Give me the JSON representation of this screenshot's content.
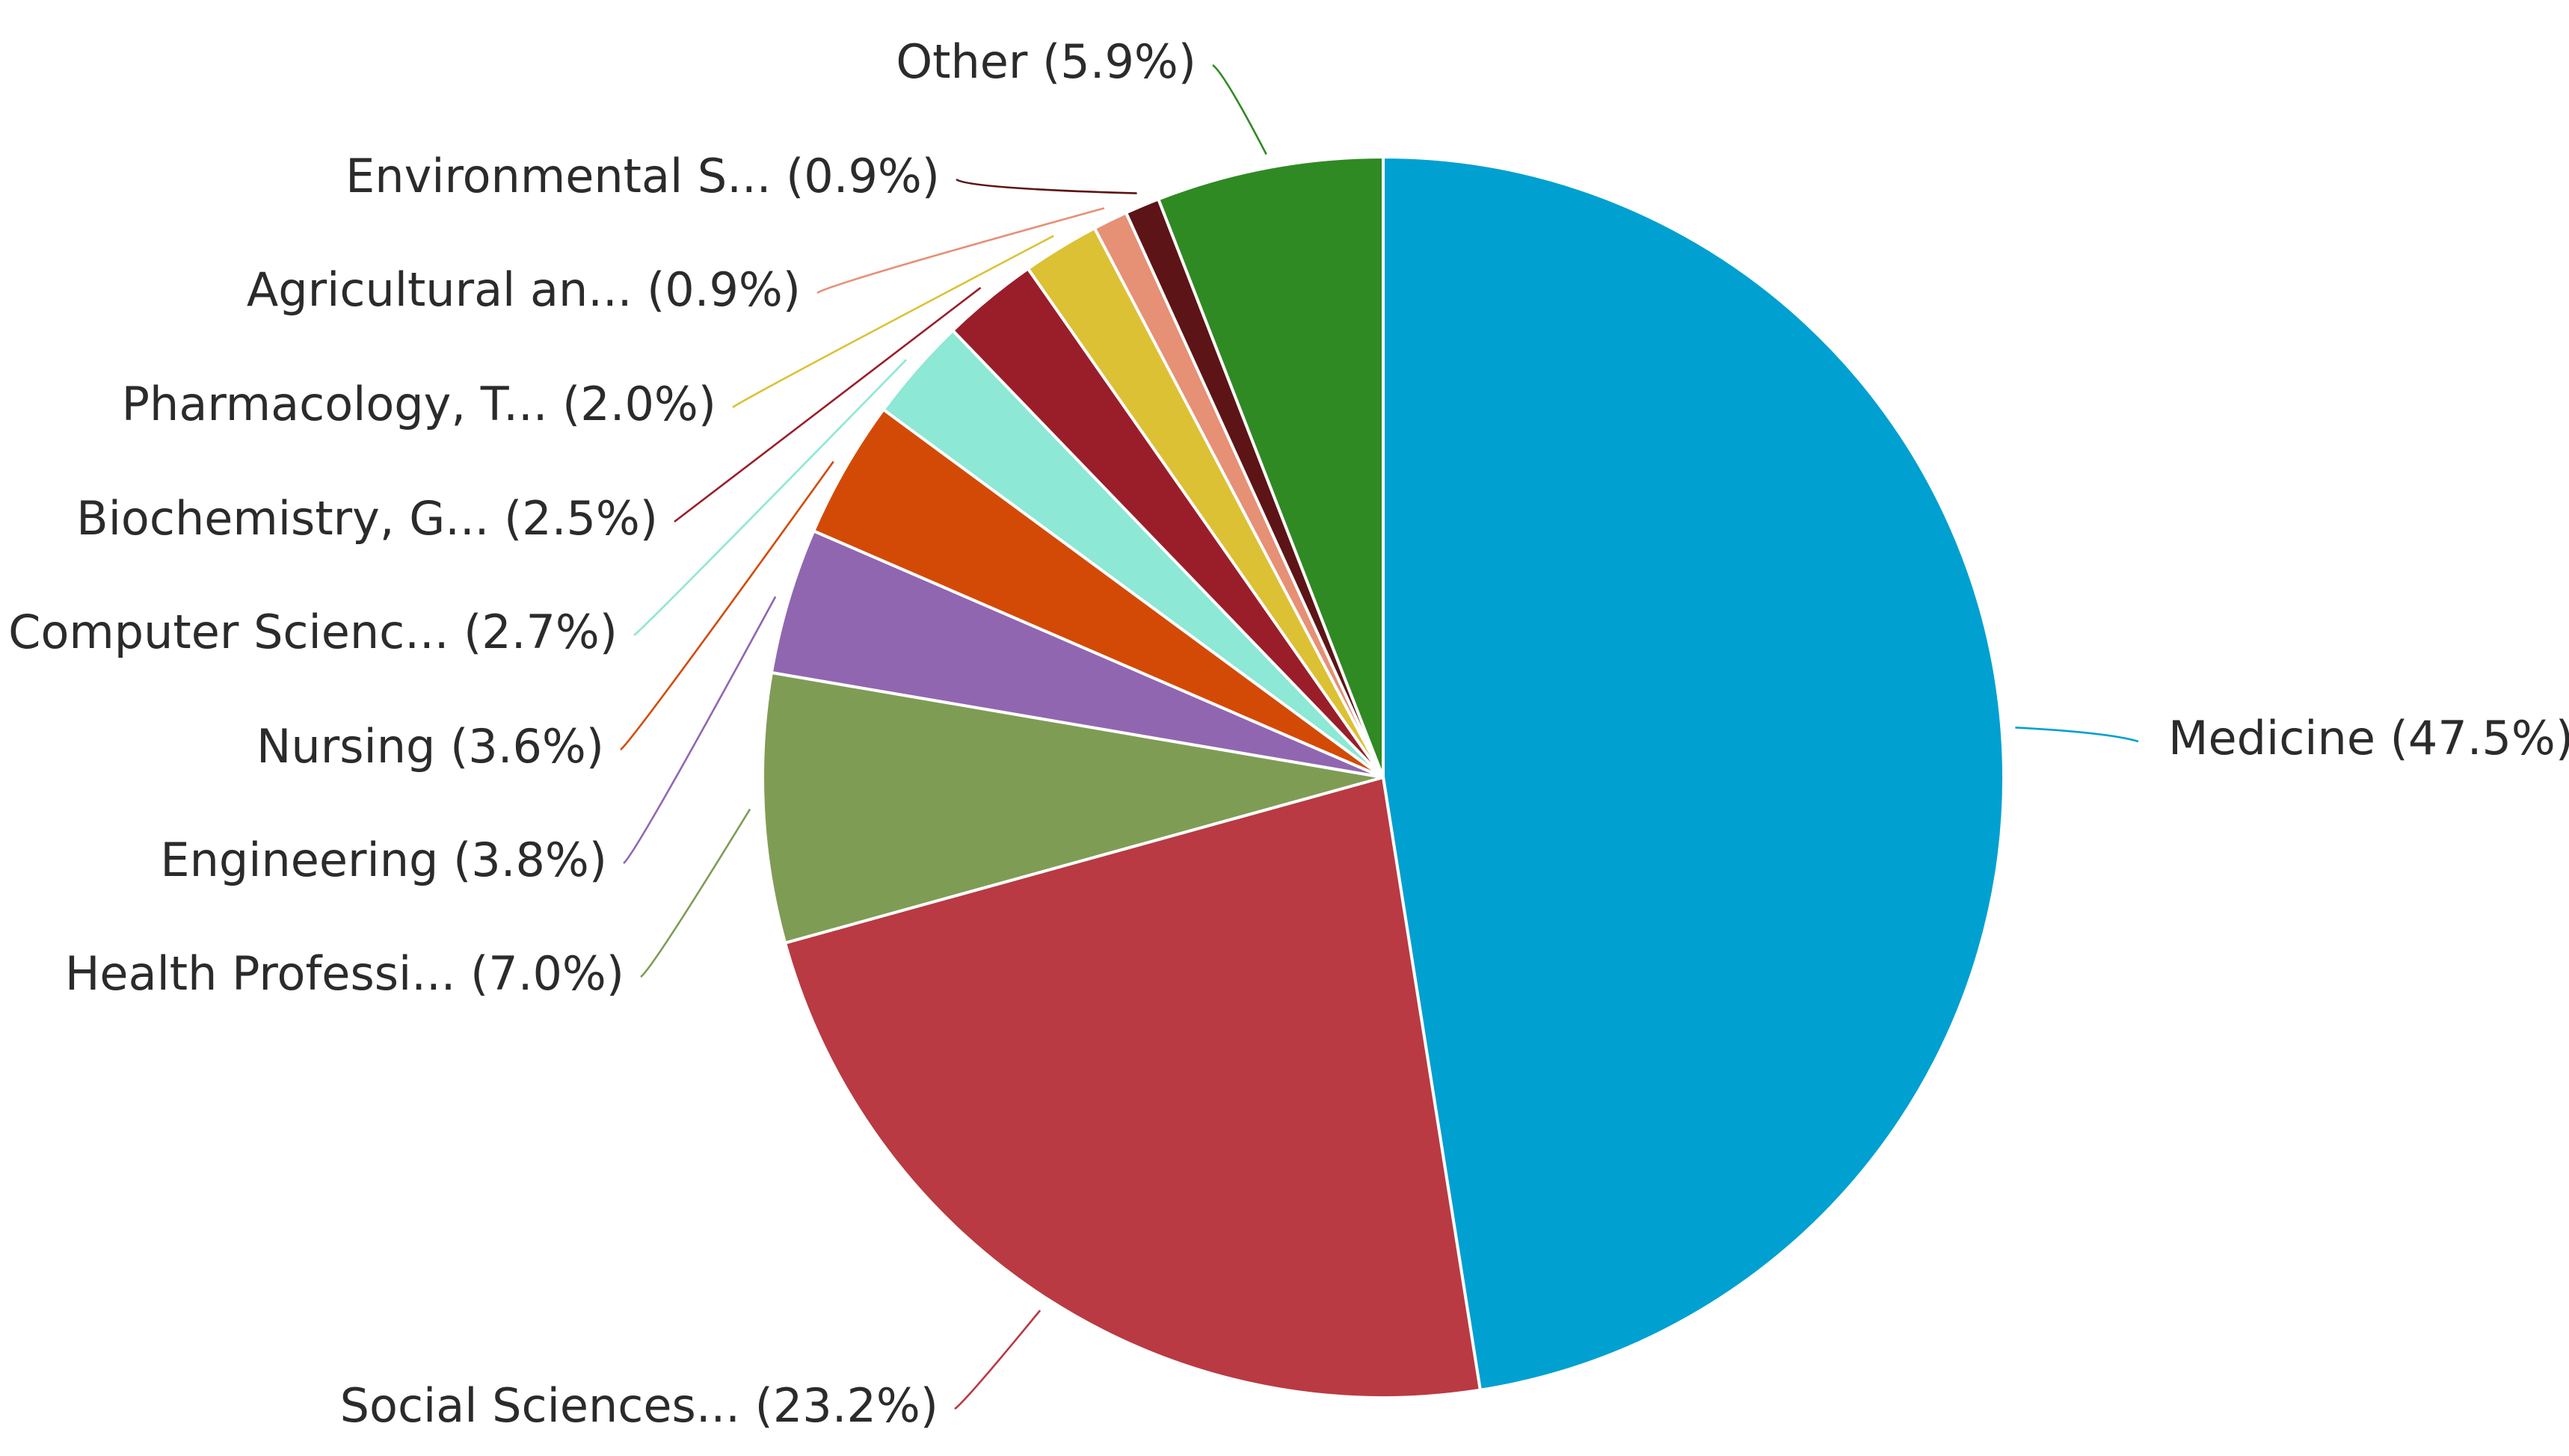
{
  "chart_data": {
    "type": "pie",
    "title": "",
    "start_angle_deg": 0,
    "direction": "clockwise",
    "slices": [
      {
        "label": "Medicine (47.5%)",
        "value": 47.5,
        "color": "#00a0d1"
      },
      {
        "label": "Social Sciences... (23.2%)",
        "value": 23.2,
        "color": "#b93a42"
      },
      {
        "label": "Health Professi... (7.0%)",
        "value": 7.0,
        "color": "#7f9c55"
      },
      {
        "label": "Engineering (3.8%)",
        "value": 3.8,
        "color": "#9166b0"
      },
      {
        "label": "Nursing (3.6%)",
        "value": 3.6,
        "color": "#d34a06"
      },
      {
        "label": "Computer Scienc... (2.7%)",
        "value": 2.7,
        "color": "#8de8d5"
      },
      {
        "label": "Biochemistry, G... (2.5%)",
        "value": 2.5,
        "color": "#991e2a"
      },
      {
        "label": "Pharmacology, T... (2.0%)",
        "value": 2.0,
        "color": "#dcc135"
      },
      {
        "label": "Agricultural an... (0.9%)",
        "value": 0.9,
        "color": "#e69075"
      },
      {
        "label": "Environmental S... (0.9%)",
        "value": 0.9,
        "color": "#5d1416"
      },
      {
        "label": "Other (5.9%)",
        "value": 5.9,
        "color": "#2f8a23"
      }
    ]
  }
}
